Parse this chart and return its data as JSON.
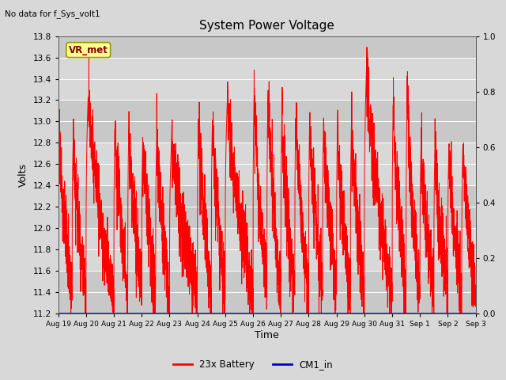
{
  "title": "System Power Voltage",
  "top_left_text": "No data for f_Sys_volt1",
  "xlabel": "Time",
  "ylabel": "Volts",
  "ylim_left": [
    11.2,
    13.8
  ],
  "ylim_right": [
    0.0,
    1.0
  ],
  "yticks_left": [
    11.2,
    11.4,
    11.6,
    11.8,
    12.0,
    12.2,
    12.4,
    12.6,
    12.8,
    13.0,
    13.2,
    13.4,
    13.6,
    13.8
  ],
  "yticks_right": [
    0.0,
    0.2,
    0.4,
    0.6,
    0.8,
    1.0
  ],
  "xtick_labels": [
    "Aug 19",
    "Aug 20",
    "Aug 21",
    "Aug 22",
    "Aug 23",
    "Aug 24",
    "Aug 25",
    "Aug 26",
    "Aug 27",
    "Aug 28",
    "Aug 29",
    "Aug 30",
    "Aug 31",
    "Sep 1",
    "Sep 2",
    "Sep 3"
  ],
  "fig_bg_color": "#d8d8d8",
  "plot_bg_color": "#e0e0e0",
  "line_color_battery": "#ff0000",
  "line_color_cm1": "#0000cc",
  "legend_labels": [
    "23x Battery",
    "CM1_in"
  ],
  "annotation_label": "VR_met",
  "annotation_bg": "#ffff99",
  "annotation_border": "#999900",
  "grid_color": "#ffffff",
  "band_color": "#cccccc",
  "num_days": 15,
  "seed": 12345
}
